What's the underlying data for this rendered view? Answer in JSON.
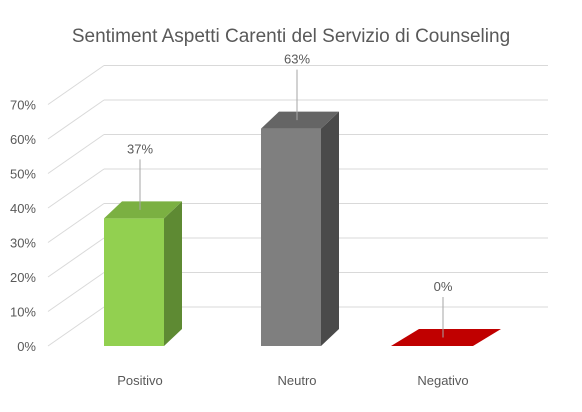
{
  "chart_data": {
    "type": "bar",
    "title": "Sentiment Aspetti Carenti del Servizio di Counseling",
    "categories": [
      "Positivo",
      "Neutro",
      "Negativo"
    ],
    "values": [
      37,
      63,
      0
    ],
    "data_labels": [
      "37%",
      "63%",
      "0%"
    ],
    "ylim": [
      0,
      70
    ],
    "y_ticks": [
      "0%",
      "10%",
      "20%",
      "30%",
      "40%",
      "50%",
      "60%",
      "70%"
    ],
    "xlabel": "",
    "ylabel": "",
    "grid": true,
    "legend": "none",
    "style": "3d-column",
    "colors": {
      "Positivo": {
        "front": "#92d050",
        "side": "#5e8a33",
        "top": "#7bb042"
      },
      "Neutro": {
        "front": "#7f7f7f",
        "side": "#4a4a4a",
        "top": "#656565"
      },
      "Negativo": {
        "front": "#c00000",
        "side": "#800000",
        "top": "#c00000"
      }
    }
  }
}
